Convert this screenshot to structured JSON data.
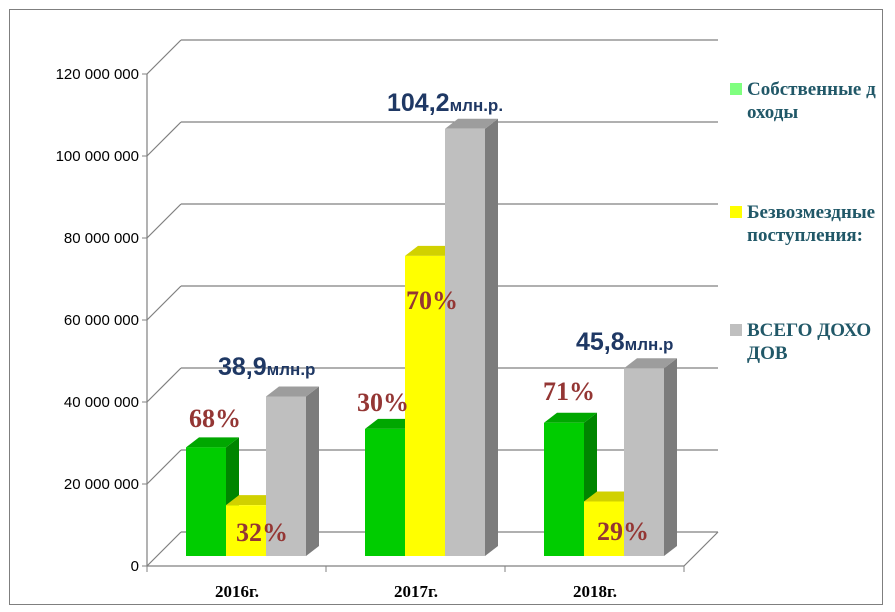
{
  "chart_data": {
    "type": "bar",
    "categories": [
      "2016г.",
      "2017г.",
      "2018г."
    ],
    "ylim": [
      0,
      120000000
    ],
    "yticks": [
      "0",
      "20 000 000",
      "40 000 000",
      "60 000 000",
      "80 000 000",
      "100 000 000",
      "120 000 000"
    ],
    "grid": true,
    "legend_position": "right",
    "series": [
      {
        "name": "Собственные доходы",
        "color": "#00cc00",
        "values": [
          26500000,
          31000000,
          32500000
        ],
        "labels": [
          "68%",
          "30%",
          "71%"
        ]
      },
      {
        "name": "Безвозмездные поступления:",
        "color": "#ffff00",
        "values": [
          12400000,
          73200000,
          13300000
        ],
        "labels": [
          "32%",
          "70%",
          "29%"
        ]
      },
      {
        "name": "ВСЕГО ДОХОДОВ",
        "color": "#bfbfbf",
        "values": [
          38900000,
          104200000,
          45800000
        ],
        "labels": [
          "38,9",
          "104,2",
          "45,8"
        ],
        "label_units": [
          "млн.р",
          "млн.р.",
          "млн.р"
        ]
      }
    ]
  },
  "legend": [
    {
      "label": "Собственные доходы",
      "color": "#7fff7f"
    },
    {
      "label": "Безвозмездные поступления:",
      "color": "#ffff00"
    },
    {
      "label": "ВСЕГО ДОХОДОВ",
      "color": "#bfbfbf"
    }
  ]
}
